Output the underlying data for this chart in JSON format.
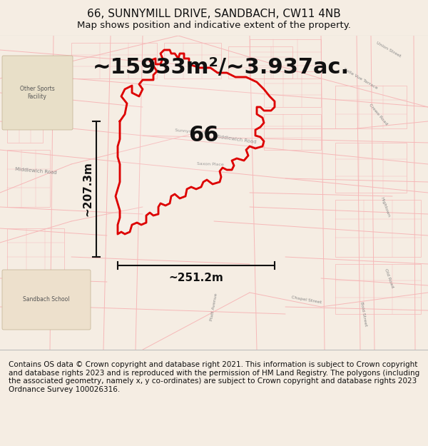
{
  "title_line1": "66, SUNNYMILL DRIVE, SANDBACH, CW11 4NB",
  "title_line2": "Map shows position and indicative extent of the property.",
  "area_text": "~15933m²/~3.937ac.",
  "label_66": "66",
  "dim_vertical": "~207.3m",
  "dim_horizontal": "~251.2m",
  "footer_text": "Contains OS data © Crown copyright and database right 2021. This information is subject to Crown copyright and database rights 2023 and is reproduced with the permission of HM Land Registry. The polygons (including the associated geometry, namely x, y co-ordinates) are subject to Crown copyright and database rights 2023 Ordnance Survey 100026316.",
  "bg_color": "#f5ede3",
  "map_area_bg": "#f0e8dc",
  "footer_bg": "#ffffff",
  "red_color": "#dd0000",
  "light_red": "#f5b8b8",
  "border_color": "#cccccc",
  "title_fontsize": 11,
  "subtitle_fontsize": 9.5,
  "area_fontsize": 22,
  "label_fontsize": 22,
  "dim_fontsize": 11,
  "footer_fontsize": 7.5
}
